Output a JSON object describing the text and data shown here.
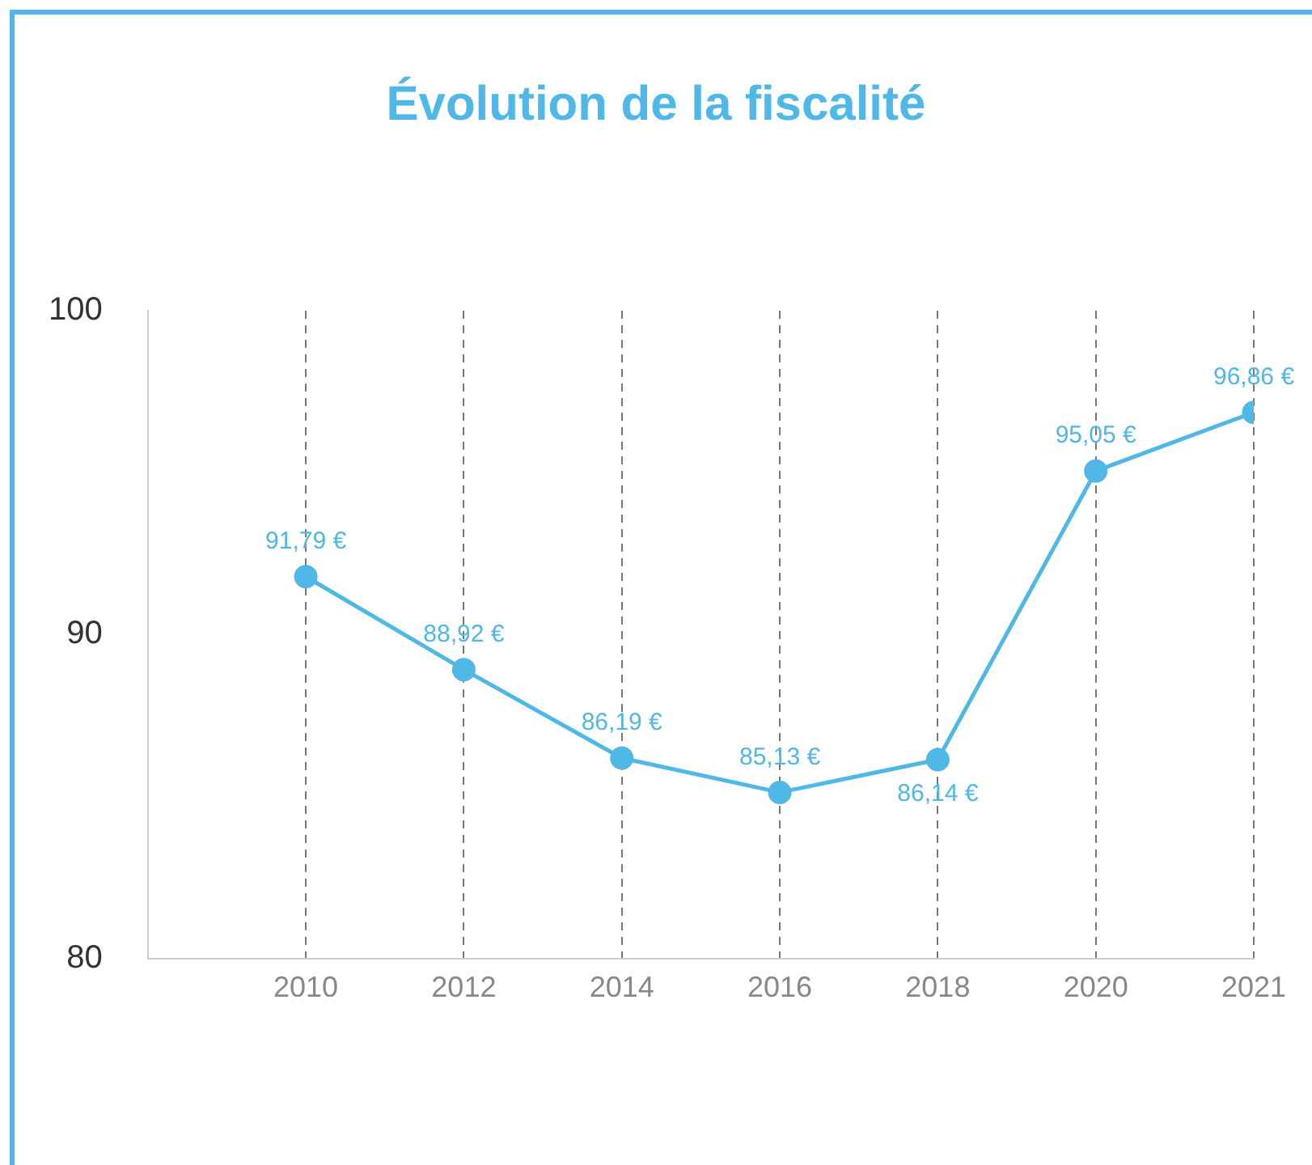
{
  "chart_data": {
    "type": "line",
    "title": "Évolution de la fiscalité",
    "categories": [
      "2010",
      "2012",
      "2014",
      "2016",
      "2018",
      "2020",
      "2021"
    ],
    "series": [
      {
        "color": "#4fb8e6",
        "values": [
          91.79,
          88.92,
          86.19,
          85.13,
          86.14,
          95.05,
          96.86
        ],
        "value_labels": [
          "91,79 €",
          "88,92 €",
          "86,19 €",
          "85,13 €",
          "86,14 €",
          "95,05 €",
          "96,86 €"
        ]
      }
    ],
    "ylim": [
      80,
      100
    ],
    "yticks": [
      80,
      90,
      100
    ],
    "grid": "x",
    "legend": false,
    "marker": "circle",
    "line_style": "solid"
  }
}
